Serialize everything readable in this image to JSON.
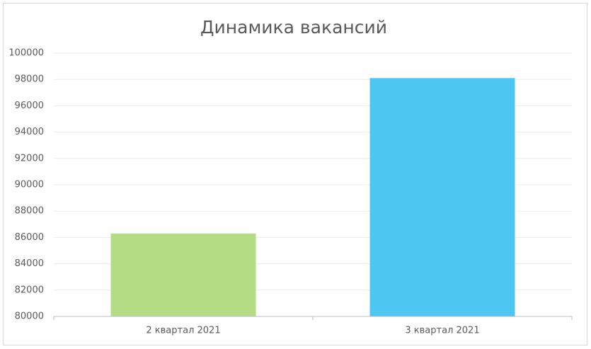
{
  "chart_data": {
    "type": "bar",
    "title": "Динамика вакансий",
    "categories": [
      "2 квартал 2021",
      "3 квартал 2021"
    ],
    "values": [
      86300,
      98100
    ],
    "colors": [
      "#b3dc84",
      "#4dc6f2"
    ],
    "ylim": [
      80000,
      100000
    ],
    "yticks": [
      80000,
      82000,
      84000,
      86000,
      88000,
      90000,
      92000,
      94000,
      96000,
      98000,
      100000
    ],
    "grid": true
  }
}
